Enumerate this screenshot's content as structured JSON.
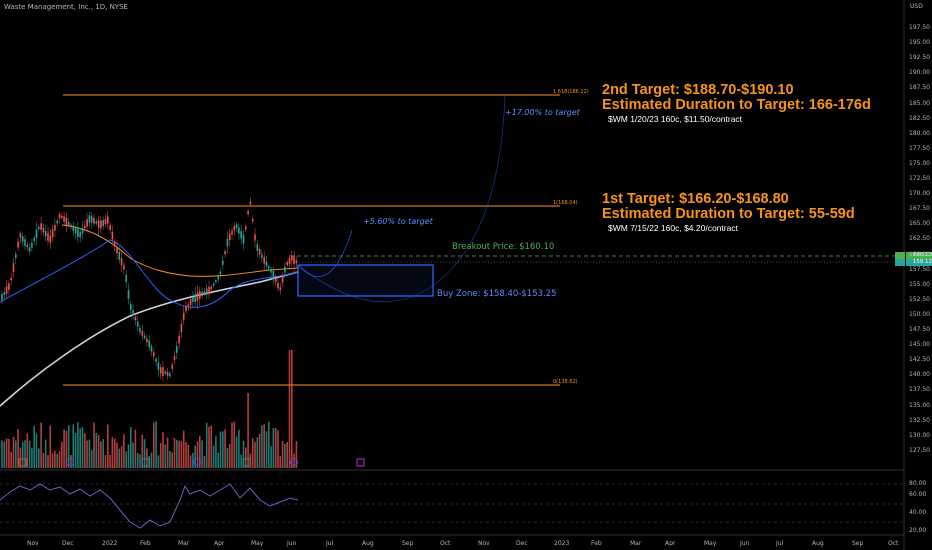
{
  "header": {
    "symbol_line": "Waste Management, Inc., 1D, NYSE",
    "currency": "USD"
  },
  "notes": {
    "target2_title": "2nd Target: $188.70-$190.10",
    "target2_duration": "Estimated Duration to Target: 166-176d",
    "target2_option": "$WM 1/20/23 160c, $11.50/contract",
    "target1_title": "1st Target: $166.20-$168.80",
    "target1_duration": "Estimated Duration to Target: 55-59d",
    "target1_option": "$WM 7/15/22 160c, $4.20/contract",
    "breakout": "Breakout Price: $160.10",
    "buy_zone": "Buy Zone: $158.40-$153.25",
    "pct_target1": "+5.60% to target",
    "pct_target2": "+17.00% to target"
  },
  "fib": {
    "level_1618": "1.618(186.22)",
    "level_1": "1(168.04)",
    "level_0": "0(138.62)"
  },
  "price_tags": {
    "upper": "160.10",
    "current": "159.12"
  },
  "price_axis": [
    "197.50",
    "195.00",
    "192.50",
    "190.00",
    "187.50",
    "185.00",
    "182.50",
    "180.00",
    "177.50",
    "175.00",
    "172.50",
    "170.00",
    "167.50",
    "165.00",
    "162.50",
    "160.00",
    "157.50",
    "155.00",
    "152.50",
    "150.00",
    "147.50",
    "145.00",
    "142.50",
    "140.00",
    "137.50",
    "135.00",
    "132.50",
    "130.00",
    "127.50"
  ],
  "rsi_axis": [
    "80.00",
    "60.00",
    "40.00",
    "20.00"
  ],
  "time_axis": [
    "Nov",
    "Dec",
    "2022",
    "Feb",
    "Mar",
    "Apr",
    "May",
    "Jun",
    "Jul",
    "Aug",
    "Sep",
    "Oct",
    "Nov",
    "Dec",
    "2023",
    "Feb",
    "Mar",
    "Apr",
    "May",
    "Jun",
    "Jul",
    "Aug",
    "Sep",
    "Oct"
  ],
  "colors": {
    "up": "#26a69a",
    "down": "#ef5350",
    "fib": "#f7931a",
    "zone": "#2962ff",
    "breakout": "#4caf50",
    "ma_white": "#d1d4dc",
    "ma_orange": "#f7931a",
    "ma_blue": "#2962ff",
    "rsi": "#7e57c2"
  }
}
